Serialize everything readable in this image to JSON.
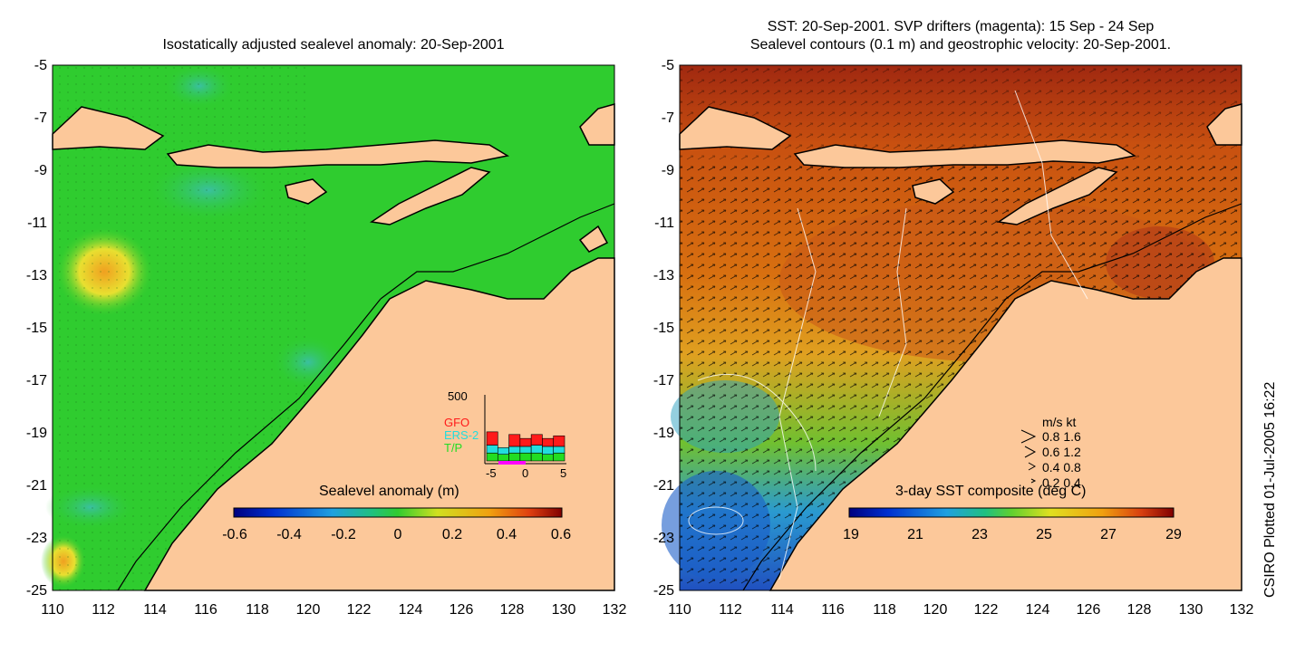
{
  "left_panel": {
    "title": "Isostatically adjusted sealevel anomaly: 20-Sep-2001",
    "y_ticks": [
      "-5",
      "-7",
      "-9",
      "-11",
      "-13",
      "-15",
      "-17",
      "-19",
      "-21",
      "-23",
      "-25"
    ],
    "x_ticks": [
      "110",
      "112",
      "114",
      "116",
      "118",
      "120",
      "122",
      "124",
      "126",
      "128",
      "130",
      "132"
    ],
    "colorbar_title": "Sealevel anomaly (m)",
    "colorbar_labels": [
      "-0.6",
      "-0.4",
      "-0.2",
      "0",
      "0.2",
      "0.4",
      "0.6"
    ],
    "inset": {
      "y_max_label": "500",
      "x_labels": [
        "-5",
        "0",
        "5"
      ],
      "legend": [
        {
          "label": "GFO",
          "color": "#ff1a1a"
        },
        {
          "label": "ERS-2",
          "color": "#22dddd"
        },
        {
          "label": "T/P",
          "color": "#22dd22"
        }
      ]
    }
  },
  "right_panel": {
    "title_line1": "SST: 20-Sep-2001. SVP drifters (magenta): 15 Sep - 24 Sep",
    "title_line2": "Sealevel contours (0.1 m) and geostrophic velocity: 20-Sep-2001.",
    "y_ticks": [
      "-5",
      "-7",
      "-9",
      "-11",
      "-13",
      "-15",
      "-17",
      "-19",
      "-21",
      "-23",
      "-25"
    ],
    "x_ticks": [
      "110",
      "112",
      "114",
      "116",
      "118",
      "120",
      "122",
      "124",
      "126",
      "128",
      "130",
      "132"
    ],
    "colorbar_title": "3-day SST composite (deg C)",
    "colorbar_labels": [
      "19",
      "21",
      "23",
      "25",
      "27",
      "29"
    ],
    "vector_legend": {
      "header": "m/s  kt",
      "rows": [
        "0.8  1.6",
        "0.6  1.2",
        "0.4  0.8",
        "0.2  0.4"
      ]
    }
  },
  "side_label": "CSIRO Plotted 01-Jul-2005 16:22",
  "colors": {
    "land": "#fcc89a",
    "sla_base": "#2fcc2f",
    "sst_warm": "#d87010",
    "sst_cool": "#2a8ad0"
  },
  "chart_data": {
    "type": "heatmap",
    "panels": [
      {
        "name": "sealevel_anomaly",
        "title": "Isostatically adjusted sealevel anomaly: 20-Sep-2001",
        "x_range": [
          110,
          132
        ],
        "y_range": [
          -25,
          -5
        ],
        "colorbar_range": [
          -0.6,
          0.6
        ],
        "colorbar_label": "Sealevel anomaly (m)"
      },
      {
        "name": "sst",
        "title": "SST: 20-Sep-2001. SVP drifters (magenta): 15 Sep - 24 Sep",
        "x_range": [
          110,
          132
        ],
        "y_range": [
          -25,
          -5
        ],
        "colorbar_range": [
          19,
          29
        ],
        "colorbar_label": "3-day SST composite (deg C)"
      }
    ],
    "inset_histogram": {
      "x_range": [
        -5,
        5
      ],
      "y_max": 500,
      "series": [
        {
          "name": "T/P",
          "values": [
            60,
            50,
            60,
            60,
            60,
            50,
            60
          ]
        },
        {
          "name": "ERS-2",
          "values": [
            60,
            50,
            50,
            50,
            60,
            60,
            50
          ]
        },
        {
          "name": "GFO",
          "values": [
            100,
            0,
            90,
            60,
            80,
            60,
            80
          ]
        }
      ]
    }
  }
}
